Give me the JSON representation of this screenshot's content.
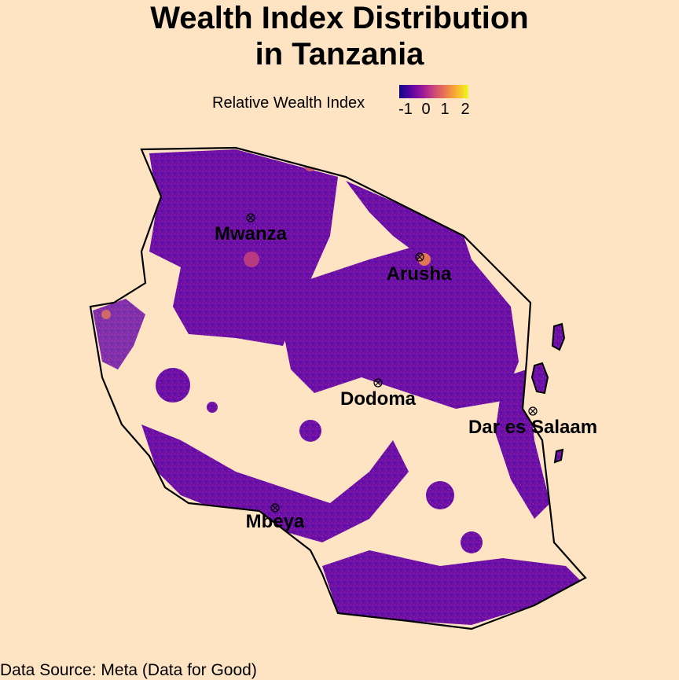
{
  "title": {
    "line1": "Wealth Index Distribution",
    "line2": "in Tanzania"
  },
  "legend": {
    "title": "Relative Wealth Index",
    "ticks": [
      "-1",
      "0",
      "1",
      "2"
    ],
    "colormap": [
      "#0d0887",
      "#5b02a3",
      "#9a179b",
      "#cb4678",
      "#eb7852",
      "#fbb32f",
      "#f0f921"
    ]
  },
  "cities": [
    {
      "name": "Mwanza"
    },
    {
      "name": "Arusha"
    },
    {
      "name": "Dodoma"
    },
    {
      "name": "Dar es Salaam"
    },
    {
      "name": "Mbeya"
    }
  ],
  "caption": "Data Source: Meta (Data for Good)",
  "colors": {
    "background": "#ffe4c4",
    "border": "#000000",
    "low": "#5b02a3",
    "high": "#fbb32f"
  }
}
